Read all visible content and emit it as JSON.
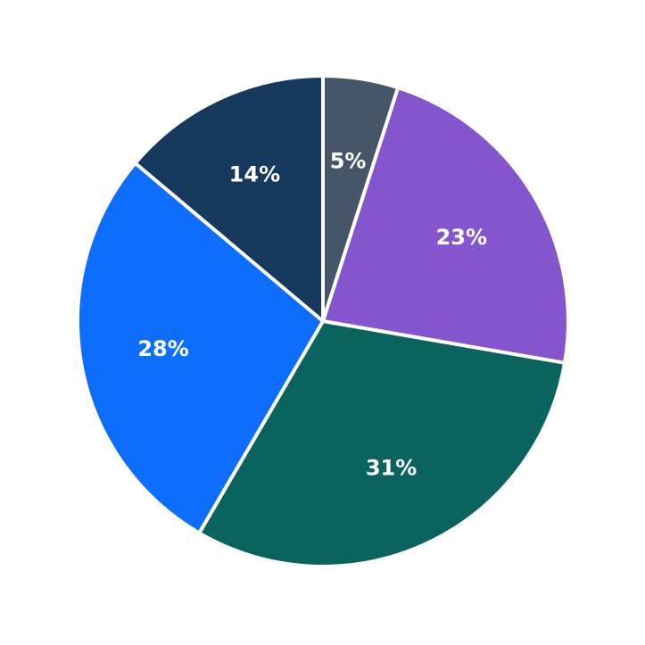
{
  "chart_data": {
    "type": "pie",
    "title": "",
    "background_color": "#ffffff",
    "center": [
      362,
      360
    ],
    "radius": 275,
    "start_angle_deg": 0,
    "clockwise": true,
    "label_radius_fraction": 0.66,
    "label_color": "#ffffff",
    "wedge_border": {
      "color": "#ffffff",
      "width": 4
    },
    "categories": [
      "5%",
      "23%",
      "31%",
      "28%",
      "14%"
    ],
    "values": [
      5,
      23,
      31,
      28,
      14
    ],
    "slices": [
      {
        "label": "5%",
        "value": 5,
        "color": "#475569"
      },
      {
        "label": "23%",
        "value": 23,
        "color": "#8455cd"
      },
      {
        "label": "31%",
        "value": 31,
        "color": "#0b6360"
      },
      {
        "label": "28%",
        "value": 28,
        "color": "#0d6efd"
      },
      {
        "label": "14%",
        "value": 14,
        "color": "#16395d"
      }
    ],
    "legend": null,
    "xlabel": "",
    "ylabel": ""
  }
}
